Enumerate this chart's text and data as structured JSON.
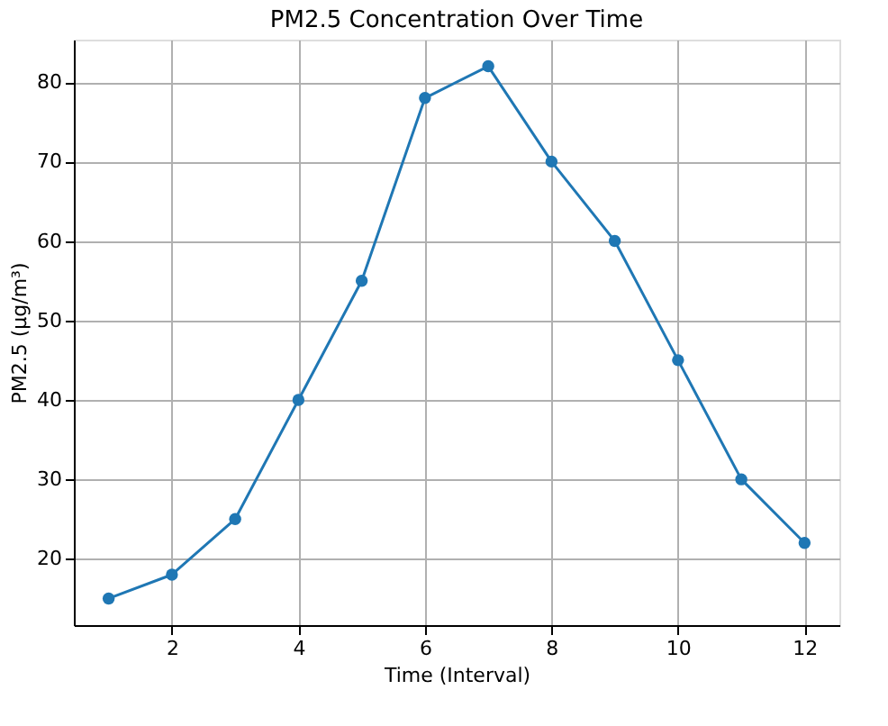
{
  "chart_data": {
    "type": "line",
    "title": "PM2.5 Concentration Over Time",
    "xlabel": "Time (Interval)",
    "ylabel": "PM2.5 (µg/m³)",
    "x": [
      1,
      2,
      3,
      4,
      5,
      6,
      7,
      8,
      9,
      10,
      11,
      12
    ],
    "series": [
      {
        "color": "#1f77b4",
        "values": [
          15,
          18,
          25,
          40,
          55,
          78,
          82,
          70,
          60,
          45,
          30,
          22
        ]
      }
    ],
    "xlim": [
      0.45,
      12.55
    ],
    "ylim": [
      11.65,
      85.35
    ],
    "xticks": [
      2,
      4,
      6,
      8,
      10,
      12
    ],
    "yticks": [
      20,
      30,
      40,
      50,
      60,
      70,
      80
    ],
    "grid": true,
    "marker": "circle",
    "line_style": "solid"
  }
}
